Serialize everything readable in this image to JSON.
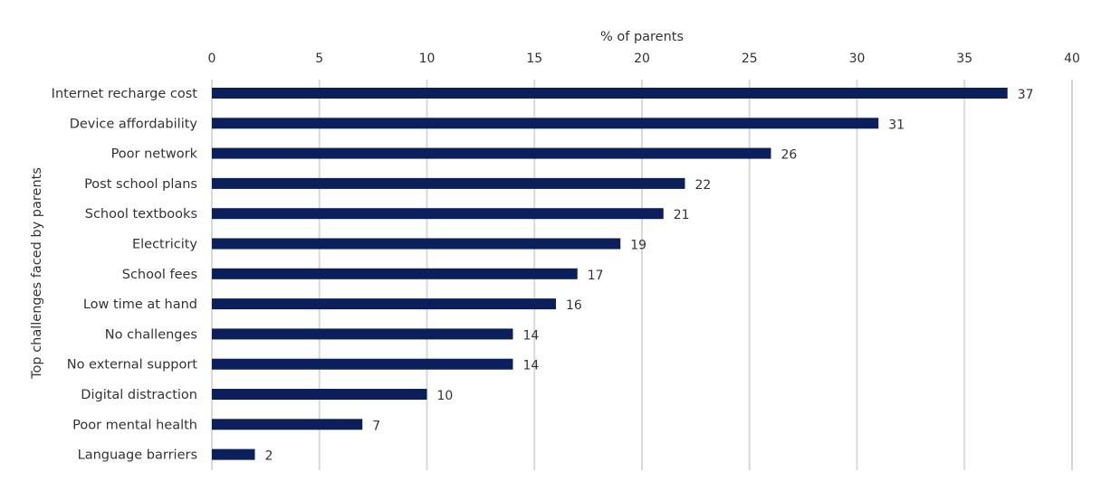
{
  "chart_data": {
    "type": "bar",
    "orientation": "horizontal",
    "xlabel": "% of parents",
    "ylabel": "Top challenges faced by parents",
    "xlim": [
      0,
      40
    ],
    "xticks": [
      0,
      5,
      10,
      15,
      20,
      25,
      30,
      35,
      40
    ],
    "x_axis_position": "top",
    "grid": true,
    "legend": "none",
    "bar_color": "#0a1f5c",
    "categories": [
      "Internet recharge cost",
      "Device affordability",
      "Poor network",
      "Post school plans",
      "School textbooks",
      "Electricity",
      "School fees",
      "Low time at hand",
      "No challenges",
      "No external support",
      "Digital distraction",
      "Poor mental health",
      "Language barriers"
    ],
    "values": [
      37,
      31,
      26,
      22,
      21,
      19,
      17,
      16,
      14,
      14,
      10,
      7,
      2
    ],
    "data_labels": [
      "37",
      "31",
      "26",
      "22",
      "21",
      "19",
      "17",
      "16",
      "14",
      "14",
      "10",
      "7",
      "2"
    ],
    "tick_labels": [
      "0",
      "5",
      "10",
      "15",
      "20",
      "25",
      "30",
      "35",
      "40"
    ]
  }
}
